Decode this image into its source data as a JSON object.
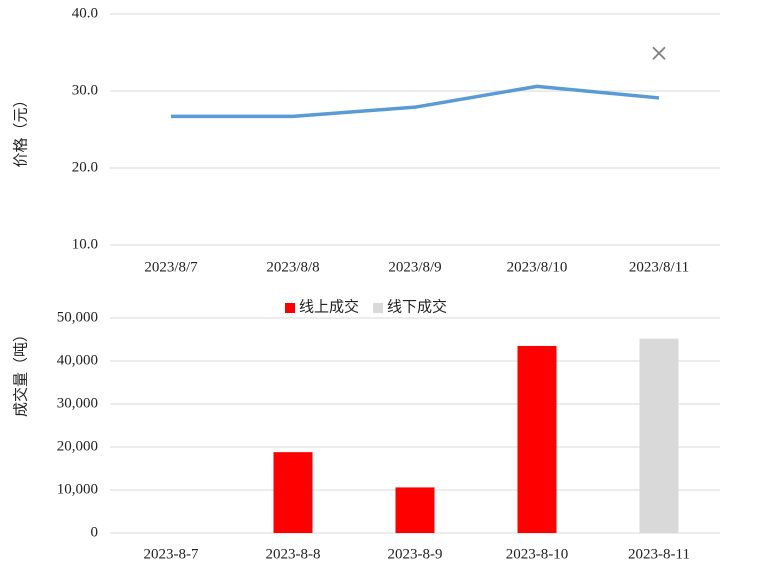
{
  "chart_data": [
    {
      "type": "line",
      "y_label": "价格（元）",
      "categories": [
        "2023/8/7",
        "2023/8/8",
        "2023/8/9",
        "2023/8/10",
        "2023/8/11"
      ],
      "series": [
        {
          "color": "#5b9bd5",
          "values": [
            26.7,
            26.7,
            27.9,
            30.6,
            29.1
          ]
        },
        {
          "color": "#808080",
          "marker": "x",
          "values": [
            null,
            null,
            null,
            null,
            34.9
          ]
        }
      ],
      "ylim": [
        10,
        40
      ],
      "yticks": [
        {
          "value": 10,
          "label": "10.0"
        },
        {
          "value": 20,
          "label": "20.0"
        },
        {
          "value": 30,
          "label": "30.0"
        },
        {
          "value": 40,
          "label": "40.0"
        }
      ],
      "grid": true
    },
    {
      "type": "bar",
      "y_label": "成交量（吨）",
      "legend": "top",
      "categories": [
        "2023-8-7",
        "2023-8-8",
        "2023-8-9",
        "2023-8-10",
        "2023-8-11"
      ],
      "series": [
        {
          "name": "线上成交",
          "color": "#ff0000",
          "values": [
            null,
            18800,
            10600,
            43500,
            null
          ]
        },
        {
          "name": "线下成交",
          "color": "#d9d9d9",
          "values": [
            null,
            null,
            null,
            null,
            45200
          ]
        }
      ],
      "ylim": [
        0,
        50000
      ],
      "yticks": [
        0,
        {
          "value": 10000,
          "label": "10,000"
        },
        {
          "value": 20000,
          "label": "20,000"
        },
        {
          "value": 30000,
          "label": "30,000"
        },
        {
          "value": 40000,
          "label": "40,000"
        },
        {
          "value": 50000,
          "label": "50,000"
        }
      ],
      "grid": true
    }
  ]
}
